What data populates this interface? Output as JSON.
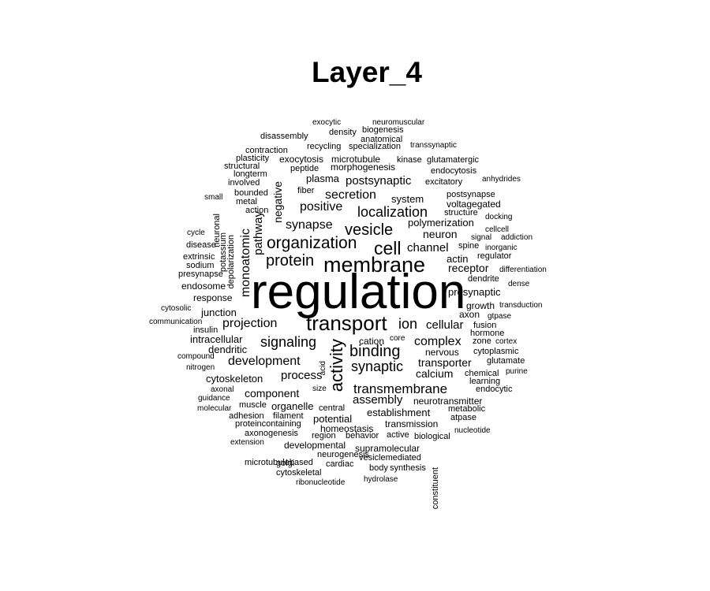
{
  "title": "Layer_4",
  "words": [
    {
      "text": "regulation",
      "size": 62
    },
    {
      "text": "transport",
      "size": 26
    },
    {
      "text": "membrane",
      "size": 27
    },
    {
      "text": "cell",
      "size": 23
    },
    {
      "text": "activity",
      "size": 22,
      "vertical": true
    },
    {
      "text": "organization",
      "size": 21
    },
    {
      "text": "binding",
      "size": 20
    },
    {
      "text": "vesicle",
      "size": 20
    },
    {
      "text": "protein",
      "size": 20
    },
    {
      "text": "signaling",
      "size": 18
    },
    {
      "text": "synaptic",
      "size": 18
    },
    {
      "text": "localization",
      "size": 18
    },
    {
      "text": "ion",
      "size": 18
    },
    {
      "text": "transmembrane",
      "size": 17
    },
    {
      "text": "positive",
      "size": 16
    },
    {
      "text": "secretion",
      "size": 16
    },
    {
      "text": "synapse",
      "size": 16
    },
    {
      "text": "projection",
      "size": 16
    },
    {
      "text": "development",
      "size": 16
    },
    {
      "text": "complex",
      "size": 16
    },
    {
      "text": "monoatomic",
      "size": 16,
      "vertical": true
    },
    {
      "text": "process",
      "size": 15
    },
    {
      "text": "pathway",
      "size": 15,
      "vertical": true
    },
    {
      "text": "postsynaptic",
      "size": 15
    },
    {
      "text": "cellular",
      "size": 15
    },
    {
      "text": "channel",
      "size": 15
    },
    {
      "text": "assembly",
      "size": 15
    },
    {
      "text": "component",
      "size": 14
    },
    {
      "text": "neuron",
      "size": 14
    },
    {
      "text": "calcium",
      "size": 14
    },
    {
      "text": "negative",
      "size": 14,
      "vertical": true
    },
    {
      "text": "receptor",
      "size": 14
    },
    {
      "text": "transporter",
      "size": 14
    },
    {
      "text": "polymerization",
      "size": 13
    },
    {
      "text": "plasma",
      "size": 13
    },
    {
      "text": "actin",
      "size": 13
    },
    {
      "text": "intracellular",
      "size": 13
    },
    {
      "text": "dendritic",
      "size": 13
    },
    {
      "text": "cytoskeleton",
      "size": 13
    },
    {
      "text": "junction",
      "size": 13
    },
    {
      "text": "organelle",
      "size": 13
    },
    {
      "text": "establishment",
      "size": 13
    },
    {
      "text": "system",
      "size": 13
    },
    {
      "text": "presynaptic",
      "size": 13
    },
    {
      "text": "potential",
      "size": 13
    },
    {
      "text": "homeostasis",
      "size": 12
    },
    {
      "text": "transmission",
      "size": 12
    },
    {
      "text": "neurotransmitter",
      "size": 12
    },
    {
      "text": "cation",
      "size": 12
    },
    {
      "text": "nervous",
      "size": 12
    },
    {
      "text": "microtubule",
      "size": 12
    },
    {
      "text": "morphogenesis",
      "size": 12
    },
    {
      "text": "developmental",
      "size": 12
    },
    {
      "text": "supramolecular",
      "size": 12
    },
    {
      "text": "exocytosis",
      "size": 12
    },
    {
      "text": "voltagegated",
      "size": 12
    },
    {
      "text": "growth",
      "size": 12
    },
    {
      "text": "axon",
      "size": 12
    },
    {
      "text": "response",
      "size": 12
    },
    {
      "text": "endosome",
      "size": 12
    },
    {
      "text": "excitatory",
      "size": 11
    },
    {
      "text": "postsynapse",
      "size": 11
    },
    {
      "text": "dendrite",
      "size": 11
    },
    {
      "text": "spine",
      "size": 11
    },
    {
      "text": "regulator",
      "size": 11
    },
    {
      "text": "structure",
      "size": 11
    },
    {
      "text": "fiber",
      "size": 11
    },
    {
      "text": "peptide",
      "size": 11
    },
    {
      "text": "recycling",
      "size": 11
    },
    {
      "text": "specialization",
      "size": 11
    },
    {
      "text": "density",
      "size": 11
    },
    {
      "text": "biogenesis",
      "size": 11
    },
    {
      "text": "anatomical",
      "size": 11
    },
    {
      "text": "kinase",
      "size": 11
    },
    {
      "text": "glutamatergic",
      "size": 11
    },
    {
      "text": "endocytosis",
      "size": 11
    },
    {
      "text": "disassembly",
      "size": 11
    },
    {
      "text": "contraction",
      "size": 11
    },
    {
      "text": "bounded",
      "size": 11
    },
    {
      "text": "action",
      "size": 11
    },
    {
      "text": "metal",
      "size": 11
    },
    {
      "text": "hormone",
      "size": 11
    },
    {
      "text": "zone",
      "size": 11
    },
    {
      "text": "fusion",
      "size": 11
    },
    {
      "text": "cytoplasmic",
      "size": 11
    },
    {
      "text": "glutamate",
      "size": 11
    },
    {
      "text": "chemical",
      "size": 11
    },
    {
      "text": "learning",
      "size": 11
    },
    {
      "text": "endocytic",
      "size": 11
    },
    {
      "text": "metabolic",
      "size": 11
    },
    {
      "text": "atpase",
      "size": 11
    },
    {
      "text": "active",
      "size": 11
    },
    {
      "text": "biological",
      "size": 11
    },
    {
      "text": "behavior",
      "size": 11
    },
    {
      "text": "region",
      "size": 11
    },
    {
      "text": "neurogenesis",
      "size": 11
    },
    {
      "text": "vesiclemediated",
      "size": 11
    },
    {
      "text": "synthesis",
      "size": 11
    },
    {
      "text": "body",
      "size": 11
    },
    {
      "text": "cardiac",
      "size": 11
    },
    {
      "text": "golgi",
      "size": 11
    },
    {
      "text": "filament",
      "size": 11
    },
    {
      "text": "adhesion",
      "size": 11
    },
    {
      "text": "proteincontaining",
      "size": 11
    },
    {
      "text": "axonogenesis",
      "size": 11
    },
    {
      "text": "muscle",
      "size": 11
    },
    {
      "text": "central",
      "size": 11
    },
    {
      "text": "cytoskeletal",
      "size": 11
    },
    {
      "text": "microtubulebased",
      "size": 11
    },
    {
      "text": "insulin",
      "size": 11
    },
    {
      "text": "extrinsic",
      "size": 11
    },
    {
      "text": "sodium",
      "size": 11
    },
    {
      "text": "presynapse",
      "size": 11
    },
    {
      "text": "disease",
      "size": 11
    },
    {
      "text": "plasticity",
      "size": 11
    },
    {
      "text": "structural",
      "size": 11
    },
    {
      "text": "longterm",
      "size": 11
    },
    {
      "text": "involved",
      "size": 11
    },
    {
      "text": "depolarization",
      "size": 11,
      "vertical": true
    },
    {
      "text": "potassium",
      "size": 11,
      "vertical": true
    },
    {
      "text": "neuronal",
      "size": 11,
      "vertical": true
    },
    {
      "text": "constituent",
      "size": 11,
      "vertical": true
    },
    {
      "text": "acid",
      "size": 10,
      "vertical": true
    },
    {
      "text": "exocytic",
      "size": 10
    },
    {
      "text": "neuromuscular",
      "size": 10
    },
    {
      "text": "transsynaptic",
      "size": 10
    },
    {
      "text": "anhydrides",
      "size": 10
    },
    {
      "text": "docking",
      "size": 10
    },
    {
      "text": "cellcell",
      "size": 10
    },
    {
      "text": "signal",
      "size": 10
    },
    {
      "text": "addiction",
      "size": 10
    },
    {
      "text": "inorganic",
      "size": 10
    },
    {
      "text": "differentiation",
      "size": 10
    },
    {
      "text": "dense",
      "size": 10
    },
    {
      "text": "transduction",
      "size": 10
    },
    {
      "text": "gtpase",
      "size": 10
    },
    {
      "text": "cortex",
      "size": 10
    },
    {
      "text": "purine",
      "size": 10
    },
    {
      "text": "nucleotide",
      "size": 10
    },
    {
      "text": "core",
      "size": 10
    },
    {
      "text": "size",
      "size": 10
    },
    {
      "text": "small",
      "size": 10
    },
    {
      "text": "cycle",
      "size": 10
    },
    {
      "text": "cytosolic",
      "size": 10
    },
    {
      "text": "communication",
      "size": 10
    },
    {
      "text": "compound",
      "size": 10
    },
    {
      "text": "nitrogen",
      "size": 10
    },
    {
      "text": "axonal",
      "size": 10
    },
    {
      "text": "guidance",
      "size": 10
    },
    {
      "text": "molecular",
      "size": 10
    },
    {
      "text": "extension",
      "size": 10
    },
    {
      "text": "ribonucleotide",
      "size": 10
    },
    {
      "text": "hydrolase",
      "size": 10
    }
  ]
}
